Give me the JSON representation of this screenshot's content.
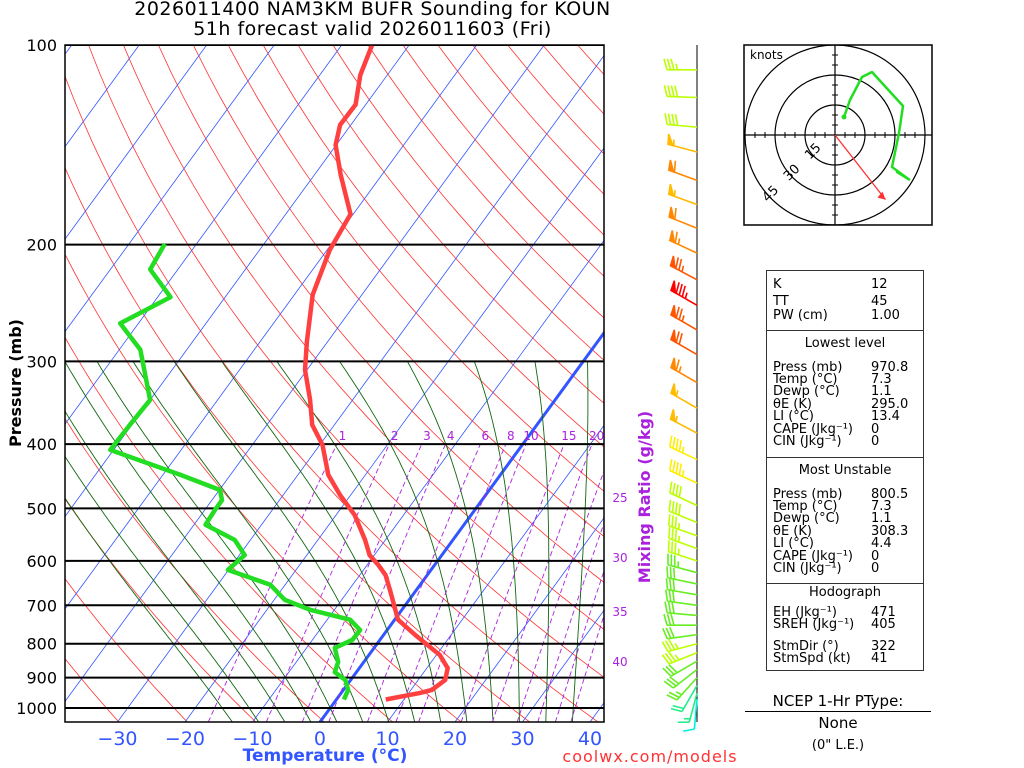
{
  "header": {
    "line1": "2026011400 NAM3KM BUFR Sounding for KOUN",
    "line2": "51h forecast valid 2026011603 (Fri)"
  },
  "footer": {
    "site": "coolwx.com/models"
  },
  "indices": {
    "k_label": "K",
    "k": "12",
    "tt_label": "TT",
    "tt": "45",
    "pw_label": "PW (cm)",
    "pw": "1.00"
  },
  "lowest_level": {
    "title": "Lowest level",
    "rows": [
      {
        "label": "Press (mb)",
        "value": "970.8"
      },
      {
        "label": "Temp (°C)",
        "value": "7.3"
      },
      {
        "label": "Dewp (°C)",
        "value": "1.1"
      },
      {
        "label": "θE (K)",
        "value": "295.0"
      },
      {
        "label": "LI (°C)",
        "value": "13.4"
      },
      {
        "label": "CAPE (Jkg⁻¹)",
        "value": "0"
      },
      {
        "label": "CIN (Jkg⁻¹)",
        "value": "0"
      }
    ]
  },
  "most_unstable": {
    "title": "Most Unstable",
    "rows": [
      {
        "label": "Press (mb)",
        "value": "800.5"
      },
      {
        "label": "Temp (°C)",
        "value": "7.3"
      },
      {
        "label": "Dewp (°C)",
        "value": "1.1"
      },
      {
        "label": "θE (K)",
        "value": "308.3"
      },
      {
        "label": "LI (°C)",
        "value": "4.4"
      },
      {
        "label": "CAPE (Jkg⁻¹)",
        "value": "0"
      },
      {
        "label": "CIN (Jkg⁻¹)",
        "value": "0"
      }
    ]
  },
  "hodograph_stats": {
    "title": "Hodograph",
    "rows": [
      {
        "label": "EH (Jkg⁻¹)",
        "value": "471"
      },
      {
        "label": "SREH (Jkg⁻¹)",
        "value": "405"
      },
      {
        "label": "StmDir (°)",
        "value": "322"
      },
      {
        "label": "StmSpd (kt)",
        "value": "41"
      }
    ]
  },
  "ptype": {
    "title": "NCEP 1-Hr PType:",
    "value": "None",
    "amount": "(0\" L.E.)"
  },
  "colors": {
    "temp": "#ff4040",
    "dewp": "#22dd22",
    "isotherm": "#3355ff",
    "dry": "#ff3333",
    "moist": "#116611",
    "mixing": "#aa22dd",
    "axis_temp": "#3355ff",
    "footer": "#ff3333"
  },
  "chart_data": {
    "type": "skew-t",
    "title": "2026011400 NAM3KM BUFR Sounding for KOUN",
    "ylabel": "Pressure (mb)",
    "xlabel": "Temperature (°C)",
    "mixing_label": "Mixing Ratio (g/kg)",
    "pressure_ticks": [
      100,
      200,
      300,
      400,
      500,
      600,
      700,
      800,
      900,
      1000
    ],
    "pressure_tick_labels": [
      "100",
      "200",
      "300",
      "400",
      "500",
      "600",
      "700",
      "800",
      "900",
      "1000"
    ],
    "temp_ticks": [
      -30,
      -20,
      -10,
      0,
      10,
      20,
      30,
      40
    ],
    "temp_tick_labels": [
      "−30",
      "−20",
      "−10",
      "0",
      "10",
      "20",
      "30",
      "40"
    ],
    "ylim": [
      1050,
      100
    ],
    "mixing_ratios": [
      1,
      2,
      3,
      4,
      6,
      8,
      10,
      15,
      20,
      25,
      30,
      35,
      40
    ],
    "mixing_ratio_labels": [
      "1",
      "2",
      "3",
      "4",
      "6",
      "8",
      "10",
      "15",
      "20",
      "25",
      "30",
      "35",
      "40"
    ],
    "temperature": [
      [
        100,
        -65.5
      ],
      [
        111,
        -64
      ],
      [
        123,
        -61.5
      ],
      [
        132,
        -61.6
      ],
      [
        141.5,
        -60.1
      ],
      [
        157,
        -56.1
      ],
      [
        180,
        -50.4
      ],
      [
        204,
        -49.6
      ],
      [
        238,
        -47.3
      ],
      [
        280,
        -43.1
      ],
      [
        309,
        -40.3
      ],
      [
        343,
        -36.3
      ],
      [
        374,
        -33.3
      ],
      [
        401,
        -29.6
      ],
      [
        445,
        -25.5
      ],
      [
        477,
        -21.6
      ],
      [
        512,
        -17.2
      ],
      [
        558,
        -13.0
      ],
      [
        588,
        -10.7
      ],
      [
        608,
        -8.4
      ],
      [
        630,
        -6.2
      ],
      [
        664,
        -3.9
      ],
      [
        736,
        0.5
      ],
      [
        776,
        4.7
      ],
      [
        832,
        10.5
      ],
      [
        871,
        13.1
      ],
      [
        907,
        14.0
      ],
      [
        939,
        13.1
      ],
      [
        949,
        11.7
      ],
      [
        970.8,
        7.3
      ]
    ],
    "dewpoint": [
      [
        199.5,
        -74.7
      ],
      [
        218,
        -74.1
      ],
      [
        240,
        -68.1
      ],
      [
        263,
        -72.7
      ],
      [
        288,
        -66.9
      ],
      [
        343,
        -60
      ],
      [
        374,
        -60.3
      ],
      [
        408,
        -60.5
      ],
      [
        445,
        -47.4
      ],
      [
        469,
        -39.9
      ],
      [
        486,
        -38.5
      ],
      [
        502,
        -38.5
      ],
      [
        529,
        -38.3
      ],
      [
        558,
        -32.3
      ],
      [
        588,
        -29.2
      ],
      [
        619,
        -30.1
      ],
      [
        652,
        -22.2
      ],
      [
        687,
        -18.4
      ],
      [
        711,
        -13.6
      ],
      [
        736,
        -6.6
      ],
      [
        763,
        -4.0
      ],
      [
        789,
        -4.1
      ],
      [
        812,
        -5.8
      ],
      [
        852,
        -3.8
      ],
      [
        883,
        -3.2
      ],
      [
        907,
        -0.8
      ],
      [
        939,
        0.7
      ],
      [
        970.8,
        1.1
      ]
    ],
    "winds": [
      [
        109,
        270,
        35
      ],
      [
        120,
        272,
        38
      ],
      [
        133,
        275,
        38
      ],
      [
        145,
        285,
        55
      ],
      [
        160,
        290,
        60
      ],
      [
        174,
        290,
        55
      ],
      [
        189,
        292,
        60
      ],
      [
        206,
        295,
        65
      ],
      [
        226,
        298,
        75
      ],
      [
        247,
        300,
        85
      ],
      [
        269,
        300,
        75
      ],
      [
        293,
        300,
        70
      ],
      [
        323,
        300,
        65
      ],
      [
        353,
        300,
        55
      ],
      [
        385,
        298,
        55
      ],
      [
        422,
        295,
        45
      ],
      [
        458,
        295,
        45
      ],
      [
        495,
        295,
        40
      ],
      [
        525,
        292,
        38
      ],
      [
        550,
        290,
        36
      ],
      [
        575,
        290,
        35
      ],
      [
        600,
        288,
        35
      ],
      [
        625,
        285,
        33
      ],
      [
        650,
        282,
        32
      ],
      [
        675,
        280,
        30
      ],
      [
        700,
        278,
        30
      ],
      [
        725,
        275,
        30
      ],
      [
        750,
        270,
        30
      ],
      [
        775,
        262,
        32
      ],
      [
        800,
        255,
        35
      ],
      [
        825,
        248,
        35
      ],
      [
        850,
        240,
        32
      ],
      [
        875,
        232,
        30
      ],
      [
        900,
        222,
        25
      ],
      [
        925,
        210,
        20
      ],
      [
        950,
        195,
        15
      ],
      [
        970,
        185,
        10
      ]
    ],
    "hodograph": {
      "units_label": "knots",
      "rings": [
        15,
        30,
        45
      ],
      "ring_labels": [
        "15",
        "30",
        "45"
      ],
      "trace_uv": [
        [
          4.5,
          9
        ],
        [
          7.5,
          17.5
        ],
        [
          13.5,
          29
        ],
        [
          18.5,
          31.5
        ],
        [
          34,
          14.5
        ],
        [
          32,
          1
        ],
        [
          28.5,
          -16
        ],
        [
          36,
          -21.5
        ],
        [
          31,
          -18.5
        ],
        [
          37.5,
          -22.5
        ]
      ],
      "storm_motion": {
        "dir": 322,
        "speed": 41
      }
    }
  }
}
